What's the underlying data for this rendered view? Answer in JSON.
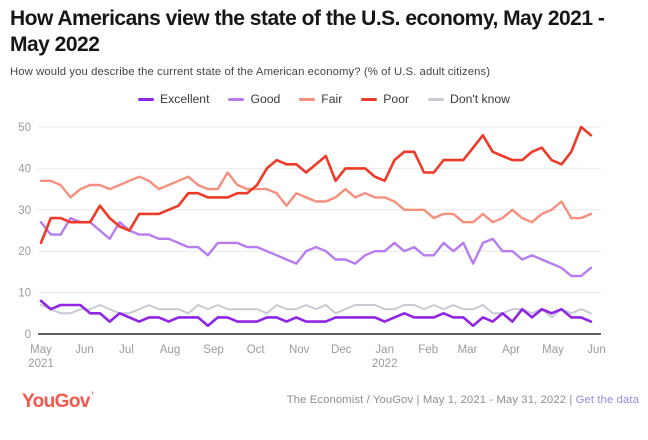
{
  "header": {
    "title": "How Americans view the state of the U.S. economy, May 2021 - May 2022",
    "subtitle": "How would you describe the current state of the American economy? (% of U.S. adult citizens)"
  },
  "legend": [
    {
      "label": "Excellent",
      "color": "#9025e3"
    },
    {
      "label": "Good",
      "color": "#b77df0"
    },
    {
      "label": "Fair",
      "color": "#f5907e"
    },
    {
      "label": "Poor",
      "color": "#ee3a28"
    },
    {
      "label": "Don't know",
      "color": "#c7ccd4"
    }
  ],
  "chart_data": {
    "type": "line",
    "title": "How Americans view the state of the U.S. economy, May 2021 - May 2022",
    "x_unit": "weekly polls, May 1 2021 - May 31 2022",
    "n_points": 57,
    "ylim": [
      0,
      50
    ],
    "yticks": [
      0,
      10,
      20,
      30,
      40,
      50
    ],
    "grid": true,
    "legend_position": "top-center",
    "axis_colors": {
      "grid": "#e8e8e8",
      "baseline": "#2f2f2f",
      "tick_text": "#9b9b9b"
    },
    "month_ticks": [
      {
        "label": "May",
        "sub": "2021",
        "week": 0
      },
      {
        "label": "Jun",
        "week": 4.43
      },
      {
        "label": "Jul",
        "week": 8.71
      },
      {
        "label": "Aug",
        "week": 13.14
      },
      {
        "label": "Sep",
        "week": 17.57
      },
      {
        "label": "Oct",
        "week": 21.86
      },
      {
        "label": "Nov",
        "week": 26.29
      },
      {
        "label": "Dec",
        "week": 30.57
      },
      {
        "label": "Jan",
        "sub": "2022",
        "week": 35.0
      },
      {
        "label": "Feb",
        "week": 39.43
      },
      {
        "label": "Mar",
        "week": 43.43
      },
      {
        "label": "Apr",
        "week": 47.86
      },
      {
        "label": "May",
        "week": 52.14
      },
      {
        "label": "Jun",
        "week": 56.57
      }
    ],
    "series": [
      {
        "name": "Excellent",
        "color": "#9025e3",
        "width": 2.6,
        "values": [
          8,
          6,
          7,
          7,
          7,
          5,
          5,
          3,
          5,
          4,
          3,
          4,
          4,
          3,
          4,
          4,
          4,
          2,
          4,
          4,
          3,
          3,
          3,
          4,
          4,
          3,
          4,
          3,
          3,
          3,
          4,
          4,
          4,
          4,
          4,
          3,
          4,
          5,
          4,
          4,
          4,
          5,
          4,
          4,
          2,
          4,
          3,
          5,
          3,
          6,
          4,
          6,
          5,
          6,
          4,
          4,
          3
        ]
      },
      {
        "name": "Good",
        "color": "#b77df0",
        "width": 2.4,
        "values": [
          27,
          24,
          24,
          28,
          27,
          27,
          25,
          23,
          27,
          25,
          24,
          24,
          23,
          23,
          22,
          21,
          21,
          19,
          22,
          22,
          22,
          21,
          21,
          20,
          19,
          18,
          17,
          20,
          21,
          20,
          18,
          18,
          17,
          19,
          20,
          20,
          22,
          20,
          21,
          19,
          19,
          22,
          20,
          22,
          17,
          22,
          23,
          20,
          20,
          18,
          19,
          18,
          17,
          16,
          14,
          14,
          16
        ]
      },
      {
        "name": "Fair",
        "color": "#f5907e",
        "width": 2.4,
        "values": [
          37,
          37,
          36,
          33,
          35,
          36,
          36,
          35,
          36,
          37,
          38,
          37,
          35,
          36,
          37,
          38,
          36,
          35,
          35,
          39,
          36,
          35,
          35,
          35,
          34,
          31,
          34,
          33,
          32,
          32,
          33,
          35,
          33,
          34,
          33,
          33,
          32,
          30,
          30,
          30,
          28,
          29,
          29,
          27,
          27,
          29,
          27,
          28,
          30,
          28,
          27,
          29,
          30,
          32,
          28,
          28,
          29
        ]
      },
      {
        "name": "Poor",
        "color": "#ee3a28",
        "width": 2.6,
        "values": [
          22,
          28,
          28,
          27,
          27,
          27,
          31,
          28,
          26,
          25,
          29,
          29,
          29,
          30,
          31,
          34,
          34,
          33,
          33,
          33,
          34,
          34,
          36,
          40,
          42,
          41,
          41,
          39,
          41,
          43,
          37,
          40,
          40,
          40,
          38,
          37,
          42,
          44,
          44,
          39,
          39,
          42,
          42,
          42,
          45,
          48,
          44,
          43,
          42,
          42,
          44,
          45,
          42,
          41,
          44,
          50,
          48
        ]
      },
      {
        "name": "Don't know",
        "color": "#c7ccd4",
        "width": 2.0,
        "values": [
          7,
          6,
          5,
          5,
          6,
          6,
          7,
          6,
          5,
          5,
          6,
          7,
          6,
          6,
          6,
          5,
          7,
          6,
          7,
          6,
          6,
          6,
          6,
          5,
          7,
          6,
          6,
          7,
          6,
          7,
          5,
          6,
          7,
          7,
          7,
          6,
          6,
          7,
          7,
          6,
          7,
          6,
          7,
          6,
          6,
          7,
          5,
          5,
          6,
          6,
          5,
          6,
          4,
          6,
          5,
          6,
          5
        ]
      }
    ]
  },
  "footer": {
    "logo": "YouGov",
    "source": "The Economist / YouGov | May 1, 2021 - May 31, 2022 |",
    "link": "Get the data"
  }
}
